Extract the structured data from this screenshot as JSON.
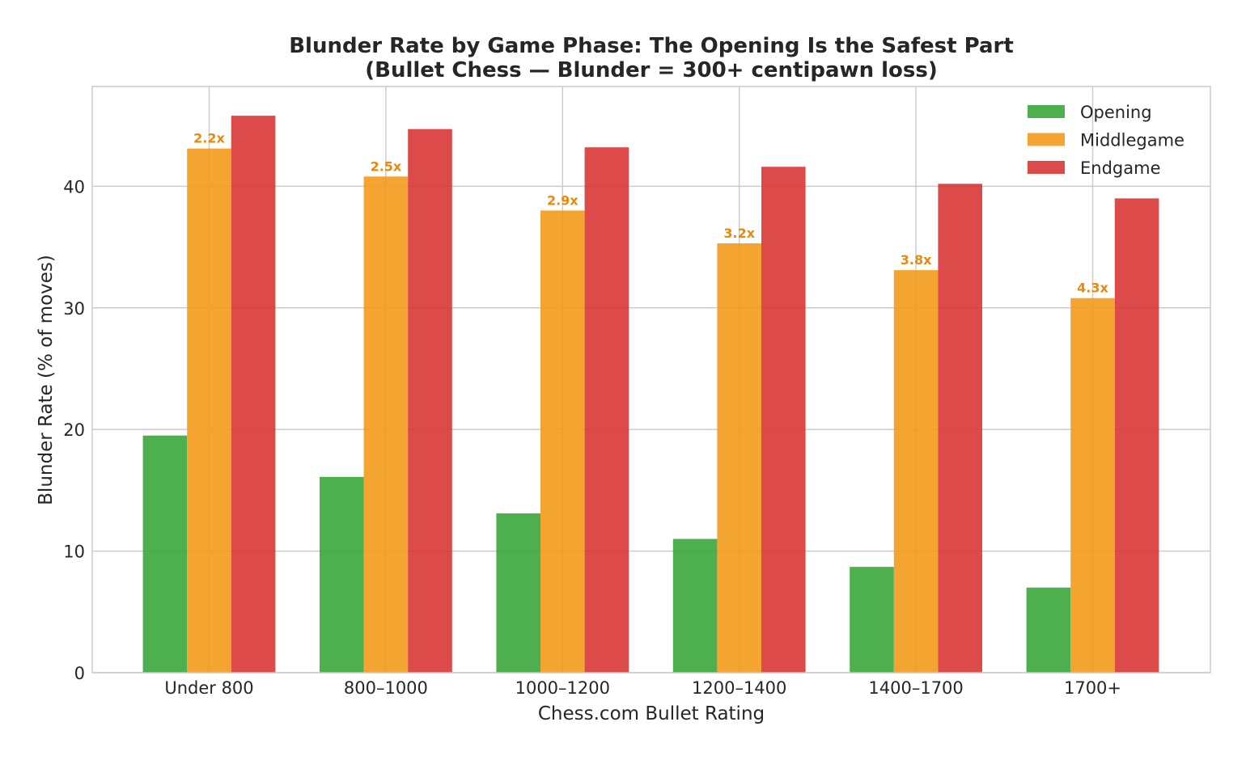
{
  "chart_data": {
    "type": "bar",
    "title": "Blunder Rate by Game Phase: The Opening Is the Safest Part",
    "subtitle": "(Bullet Chess — Blunder = 300+ centipawn loss)",
    "xlabel": "Chess.com Bullet Rating",
    "ylabel": "Blunder Rate (% of moves)",
    "categories": [
      "Under 800",
      "800–1000",
      "1000–1200",
      "1200–1400",
      "1400–1700",
      "1700+"
    ],
    "ylim": [
      0,
      48.2
    ],
    "yticks": [
      0,
      10,
      20,
      30,
      40
    ],
    "grid": true,
    "legend_position": "top-right",
    "series": [
      {
        "name": "Opening",
        "color": "#3aa63a",
        "values": [
          19.5,
          16.1,
          13.1,
          11.0,
          8.7,
          7.0
        ]
      },
      {
        "name": "Middlegame",
        "color": "#f39a1b",
        "values": [
          43.1,
          40.8,
          38.0,
          35.3,
          33.1,
          30.8
        ]
      },
      {
        "name": "Endgame",
        "color": "#d93636",
        "values": [
          45.8,
          44.7,
          43.2,
          41.6,
          40.2,
          39.0
        ]
      }
    ],
    "annotations": {
      "series": "Middlegame",
      "color": "#e8890c",
      "labels": [
        "2.2x",
        "2.5x",
        "2.9x",
        "3.2x",
        "3.8x",
        "4.3x"
      ]
    }
  }
}
